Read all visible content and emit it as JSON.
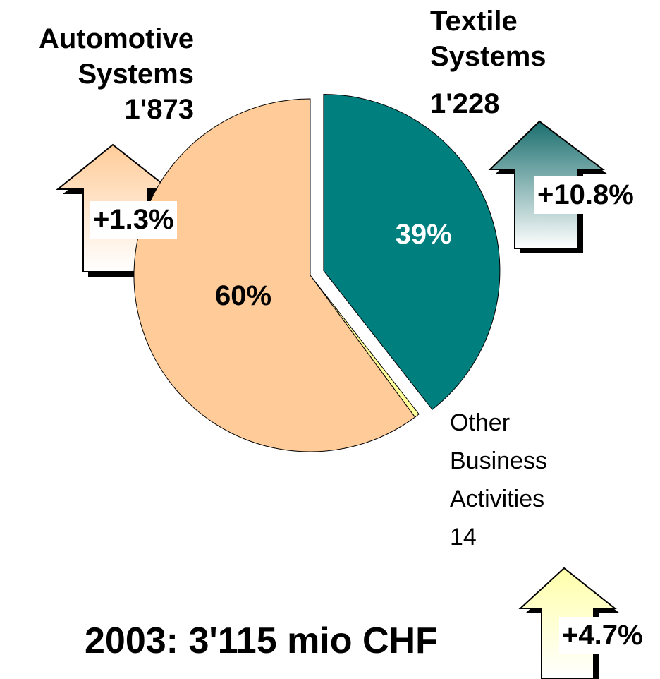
{
  "chart_data": {
    "type": "pie",
    "title": "2003: 3'115 mio CHF",
    "categories": [
      "Automotive Systems",
      "Textile Systems",
      "Other Business Activities"
    ],
    "values": [
      1873,
      1228,
      14
    ],
    "value_labels": [
      "1'873",
      "1'228",
      "14"
    ],
    "percentages": [
      60,
      39,
      null
    ],
    "percentage_labels": [
      "60%",
      "39%",
      null
    ],
    "percentage_colors": [
      "#000000",
      "#ffffff",
      null
    ],
    "colors": [
      "#FFCC99",
      "#007F7F",
      "#FFFF99"
    ],
    "growth": [
      "+1.3%",
      "+10.8%",
      "+4.7%"
    ]
  }
}
